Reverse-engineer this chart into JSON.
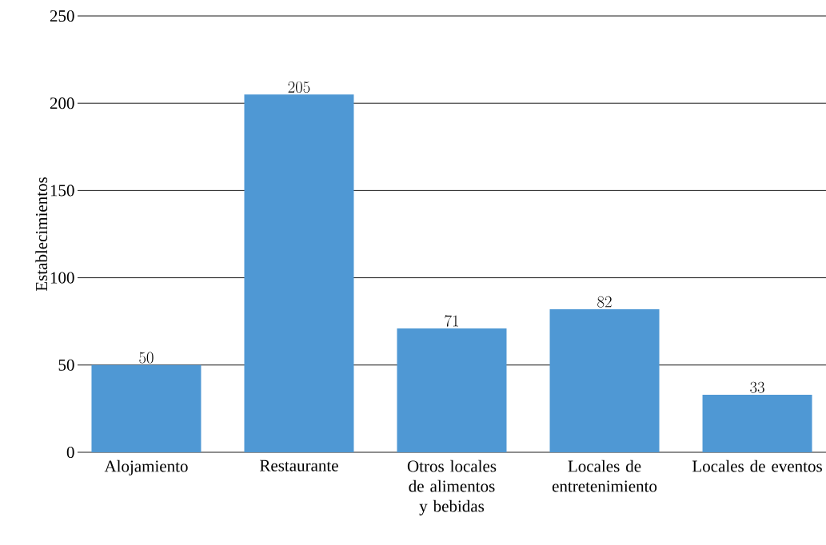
{
  "chart_data": {
    "type": "bar",
    "ylabel": "Establecimientos",
    "categories": [
      "Alojamiento",
      "Restaurante",
      "Otros locales de alimentos y bebidas",
      "Locales de entretenimiento",
      "Locales de eventos"
    ],
    "values": [
      50,
      205,
      71,
      82,
      33
    ],
    "color": "#4f98d4",
    "ylim": [
      0,
      250
    ],
    "yticks": [
      0,
      50,
      100,
      150,
      200,
      250
    ],
    "grid": "y",
    "data_labels": true
  }
}
